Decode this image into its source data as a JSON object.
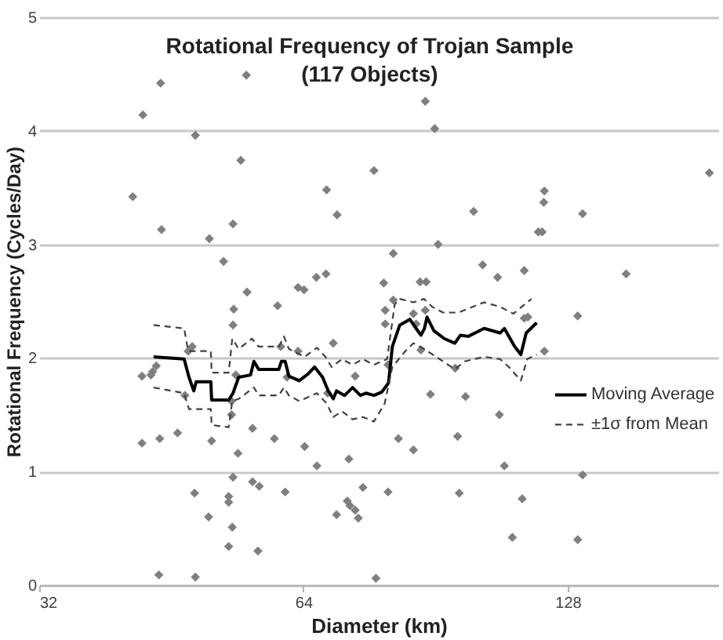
{
  "chart_data": {
    "type": "scatter",
    "title": "Rotational Frequency of Trojan Sample\n(117 Objects)",
    "xlabel": "Diameter (km)",
    "ylabel": "Rotational Frequency (Cycles/Day)",
    "log": "x",
    "xlim": [
      32,
      190
    ],
    "xticks": [
      32,
      64,
      128
    ],
    "ylim": [
      0,
      5
    ],
    "yticks": [
      0,
      1,
      2,
      3,
      4,
      5
    ],
    "grid": "y",
    "legend": "right",
    "series": [
      {
        "color": "#7f7f7f",
        "marker": "diamond",
        "x": [
          44.0,
          55.1,
          42.0,
          48.2,
          54.3,
          40.9,
          77.0,
          68.0,
          69.9,
          44.1,
          50.0,
          53.2,
          51.9,
          55.2,
          59.8,
          53.3,
          63.1,
          64.1,
          66.2,
          67.9,
          79.0,
          79.3,
          53.2,
          79.3,
          47.3,
          47.8,
          69.2,
          60.3,
          63.1,
          43.5,
          43.1,
          41.9,
          42.9,
          53.6,
          61.3,
          73.3,
          46.9,
          53.0,
          53.0,
          68.2,
          41.9,
          43.9,
          46.0,
          50.3,
          56.0,
          59.3,
          64.2,
          53.9,
          66.3,
          72.1,
          53.2,
          56.0,
          57.0,
          48.1,
          61.0,
          74.8,
          79.9,
          52.6,
          52.6,
          71.8,
          72.3,
          73.3,
          73.9,
          69.8,
          49.9,
          53.1,
          52.6,
          56.8,
          43.8,
          48.2,
          77.4,
          88.1,
          90.3,
          185.6,
          120.4,
          120.2,
          100.0,
          133.1,
          118.5,
          119.7,
          91.1,
          81.0,
          102.4,
          106.5,
          114.2,
          149.2,
          86.9,
          88.3,
          81.0,
          85.4,
          88.1,
          86.0,
          114.2,
          115.3,
          131.4,
          87.1,
          120.4,
          79.9,
          95.3,
          89.3,
          97.9,
          107.0,
          82.1,
          85.4,
          95.9,
          108.4,
          133.1,
          96.3,
          113.6,
          110.7,
          131.4
        ],
        "values": [
          4.42,
          4.49,
          4.14,
          3.96,
          3.74,
          3.42,
          3.65,
          3.48,
          3.26,
          3.13,
          3.05,
          3.18,
          2.85,
          2.58,
          2.46,
          2.43,
          2.62,
          2.6,
          2.71,
          2.74,
          2.66,
          2.42,
          2.29,
          2.3,
          2.06,
          2.1,
          2.13,
          2.1,
          2.06,
          1.93,
          1.88,
          1.84,
          1.85,
          1.85,
          1.83,
          1.84,
          1.67,
          1.62,
          1.5,
          1.69,
          1.25,
          1.29,
          1.34,
          1.27,
          1.38,
          1.29,
          1.22,
          1.16,
          1.05,
          1.11,
          0.95,
          0.91,
          0.87,
          0.81,
          0.82,
          0.86,
          0.82,
          0.78,
          0.73,
          0.74,
          0.7,
          0.66,
          0.59,
          0.62,
          0.6,
          0.51,
          0.34,
          0.3,
          0.09,
          0.07,
          0.06,
          4.26,
          4.02,
          3.63,
          3.47,
          3.37,
          3.29,
          3.27,
          3.11,
          3.11,
          3.0,
          2.92,
          2.82,
          2.71,
          2.77,
          2.74,
          2.67,
          2.67,
          2.51,
          2.39,
          2.42,
          2.3,
          2.35,
          2.36,
          2.37,
          2.07,
          2.06,
          1.94,
          1.91,
          1.68,
          1.66,
          1.5,
          1.29,
          1.19,
          1.31,
          1.05,
          0.97,
          0.81,
          0.76,
          0.42,
          0.4
        ]
      },
      {
        "type": "line",
        "name": "Moving Average",
        "color": "#000000",
        "line_style": "solid",
        "x": [
          43.2,
          46.8,
          47.4,
          48.0,
          48.3,
          50.2,
          50.3,
          52.6,
          53.2,
          54.0,
          55.7,
          56.2,
          56.9,
          60.0,
          60.4,
          61.0,
          61.6,
          63.3,
          64.8,
          65.9,
          67.3,
          68.3,
          69.2,
          69.8,
          71.3,
          72.8,
          74.3,
          75.4,
          77.0,
          78.6,
          80.0,
          80.8,
          82.4,
          84.6,
          86.0,
          87.1,
          87.9,
          88.5,
          90.1,
          92.6,
          95.2,
          96.6,
          98.6,
          102.8,
          107.2,
          108.4,
          111.4,
          113.2,
          114.8,
          118.0
        ],
        "values": [
          2.01,
          1.99,
          1.83,
          1.71,
          1.79,
          1.79,
          1.63,
          1.63,
          1.69,
          1.83,
          1.85,
          1.97,
          1.9,
          1.9,
          1.97,
          1.97,
          1.84,
          1.8,
          1.86,
          1.92,
          1.83,
          1.71,
          1.64,
          1.71,
          1.67,
          1.74,
          1.67,
          1.69,
          1.67,
          1.7,
          1.78,
          2.1,
          2.29,
          2.34,
          2.26,
          2.2,
          2.26,
          2.36,
          2.24,
          2.17,
          2.13,
          2.2,
          2.19,
          2.26,
          2.22,
          2.26,
          2.1,
          2.03,
          2.22,
          2.31
        ]
      },
      {
        "type": "line",
        "name": "±1σ from Mean",
        "color": "#404040",
        "line_style": "dashed",
        "x": [
          43.2,
          46.8,
          47.3,
          50.2,
          50.3,
          52.6,
          53.1,
          54.0,
          55.9,
          56.9,
          60.0,
          60.8,
          61.6,
          64.2,
          66.3,
          67.8,
          68.9,
          70.8,
          72.8,
          74.8,
          77.0,
          79.7,
          81.3,
          82.4,
          85.4,
          87.8,
          89.7,
          92.3,
          96.1,
          102.8,
          107.2,
          111.0,
          116.4
        ],
        "values": [
          2.29,
          2.26,
          2.06,
          2.06,
          1.87,
          1.87,
          2.17,
          2.08,
          2.17,
          2.1,
          2.1,
          2.19,
          2.08,
          2.01,
          2.09,
          2.01,
          1.92,
          1.99,
          1.94,
          1.99,
          1.94,
          1.99,
          2.47,
          2.52,
          2.49,
          2.52,
          2.45,
          2.4,
          2.4,
          2.49,
          2.45,
          2.39,
          2.52
        ]
      },
      {
        "type": "line",
        "color": "#404040",
        "line_style": "dashed",
        "x": [
          43.2,
          46.8,
          47.4,
          50.2,
          50.3,
          52.6,
          53.1,
          54.0,
          56.2,
          56.9,
          60.0,
          60.8,
          61.6,
          63.3,
          66.3,
          68.0,
          69.2,
          70.8,
          72.8,
          74.8,
          77.0,
          79.2,
          80.8,
          83.6,
          85.4,
          87.8,
          92.3,
          95.2,
          97.7,
          102.8,
          107.2,
          109.7,
          113.2,
          115.1,
          118.0
        ],
        "values": [
          1.74,
          1.69,
          1.55,
          1.55,
          1.41,
          1.39,
          1.62,
          1.64,
          1.74,
          1.67,
          1.67,
          1.74,
          1.67,
          1.62,
          1.69,
          1.6,
          1.48,
          1.53,
          1.46,
          1.48,
          1.44,
          1.6,
          1.92,
          2.06,
          2.13,
          2.08,
          1.97,
          1.9,
          1.97,
          2.01,
          1.99,
          1.92,
          1.8,
          1.99,
          2.03
        ]
      }
    ]
  }
}
